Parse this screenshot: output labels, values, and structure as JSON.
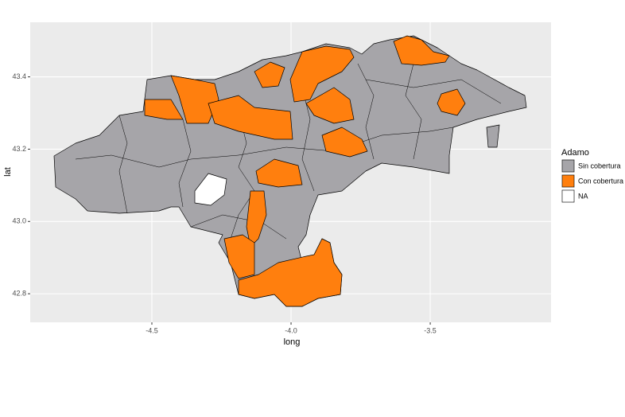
{
  "chart_data": {
    "type": "map",
    "xlabel": "long",
    "ylabel": "lat",
    "xlim": [
      -4.937,
      -3.066
    ],
    "ylim": [
      42.721,
      43.551
    ],
    "xticks": [
      -4.5,
      {
        "value": -4,
        "label": "-4.0"
      },
      -3.5
    ],
    "yticks": [
      {
        "value": 43,
        "label": "43.0"
      },
      42.8,
      43.2,
      43.4
    ],
    "grid": true,
    "legend": {
      "title": "Adamo",
      "entries": [
        {
          "label": "Sin cobertura",
          "color": "#a6a5a9"
        },
        {
          "label": "Con cobertura",
          "color": "#ff7f0e"
        },
        {
          "label": "NA",
          "color": "#ffffff"
        }
      ]
    }
  }
}
